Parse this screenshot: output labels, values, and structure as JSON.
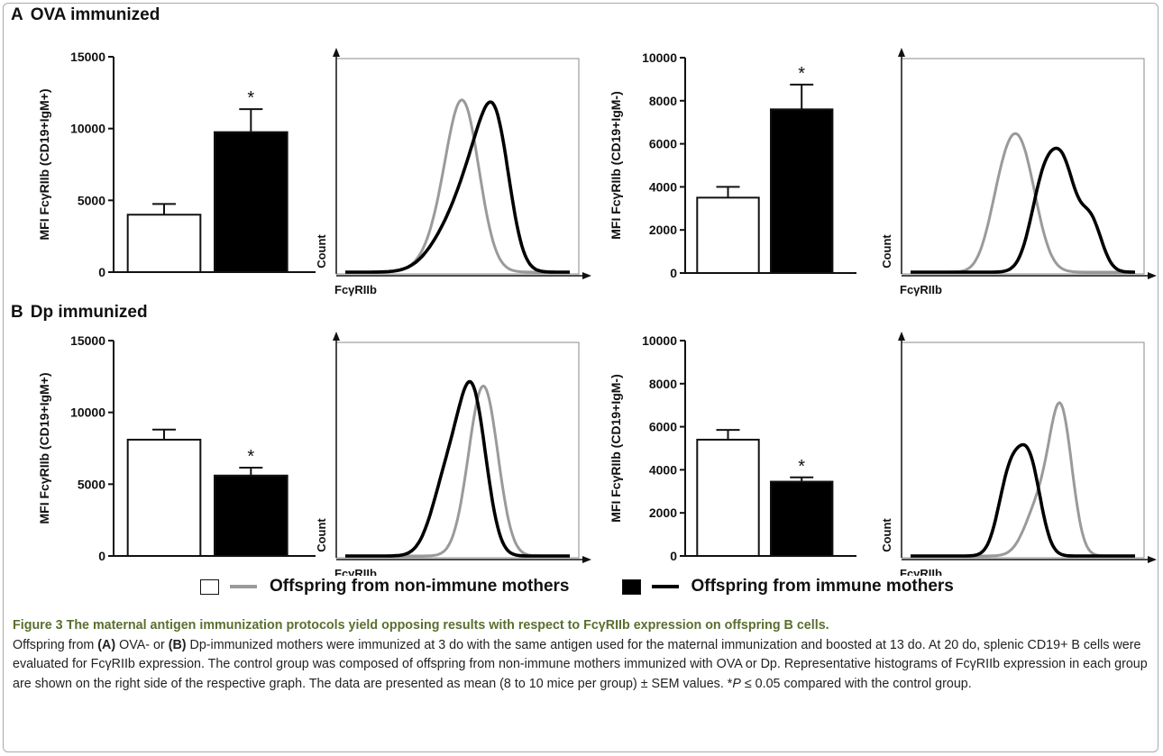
{
  "sections": [
    {
      "letter": "A",
      "title": "OVA immunized"
    },
    {
      "letter": "B",
      "title": "Dp immunized"
    }
  ],
  "colors": {
    "non_immune": "#9a9a9a",
    "immune": "#000000",
    "caption_title": "#5a6f2f"
  },
  "histogram_labels": {
    "y": "Count",
    "x": "FcγRIIb"
  },
  "legend": {
    "non_immune": "Offspring from non-immune mothers",
    "immune": "Offspring from immune mothers"
  },
  "caption": {
    "title": "Figure 3 The maternal antigen immunization protocols yield opposing results with respect to FcγRIIb expression on offspring B cells.",
    "part1": "Offspring from ",
    "ref_a": "(A)",
    "part2": " OVA- or ",
    "ref_b": "(B)",
    "part3": " Dp-immunized mothers were immunized at 3 do with the same antigen used for the maternal immunization and boosted at 13 do. At 20 do, splenic CD19+ B cells were evaluated for FcγRIIb expression. The control group was composed of offspring from non-immune mothers immunized with OVA or Dp. Representative histograms of FcγRIIb expression in each group are shown on the right side of the respective graph. The data are presented as mean (8 to 10 mice per group) ± SEM values. *",
    "p_symbol": "P",
    "part4": " ≤ 0.05 compared with the control group."
  },
  "chart_data": [
    {
      "type": "bar",
      "panel": "A-left",
      "categories": [
        "Offspring from non-immune mothers",
        "Offspring from immune mothers"
      ],
      "values": [
        4000,
        9750
      ],
      "errors": [
        750,
        1600
      ],
      "significance": [
        "",
        "*"
      ],
      "ylabel": "MFI FcγRIIb (CD19+IgM+)",
      "ylim": [
        0,
        15000
      ],
      "yticks": [
        0,
        5000,
        10000,
        15000
      ]
    },
    {
      "type": "histogram",
      "panel": "A-left-hist",
      "xlabel": "FcγRIIb",
      "ylabel": "Count",
      "series": [
        {
          "name": "Offspring from non-immune mothers",
          "peak_x": 0.53,
          "peak_y": 0.82
        },
        {
          "name": "Offspring from immune mothers",
          "peak_x": 0.61,
          "peak_y": 0.81
        }
      ]
    },
    {
      "type": "bar",
      "panel": "A-right",
      "categories": [
        "Offspring from non-immune mothers",
        "Offspring from immune mothers"
      ],
      "values": [
        3500,
        7600
      ],
      "errors": [
        500,
        1150
      ],
      "significance": [
        "",
        "*"
      ],
      "ylabel": "MFI FcγRIIb (CD19+IgM-)",
      "ylim": [
        0,
        10000
      ],
      "yticks": [
        0,
        2000,
        4000,
        6000,
        8000,
        10000
      ]
    },
    {
      "type": "histogram",
      "panel": "A-right-hist",
      "xlabel": "FcγRIIb",
      "ylabel": "Count",
      "series": [
        {
          "name": "Offspring from non-immune mothers",
          "peak_x": 0.49,
          "peak_y": 0.66
        },
        {
          "name": "Offspring from immune mothers",
          "peak_x": 0.6,
          "peak_y": 0.59
        }
      ]
    },
    {
      "type": "bar",
      "panel": "B-left",
      "categories": [
        "Offspring from non-immune mothers",
        "Offspring from immune mothers"
      ],
      "values": [
        8100,
        5600
      ],
      "errors": [
        700,
        550
      ],
      "significance": [
        "",
        "*"
      ],
      "ylabel": "MFI FcγRIIb (CD19+IgM+)",
      "ylim": [
        0,
        15000
      ],
      "yticks": [
        0,
        5000,
        10000,
        15000
      ]
    },
    {
      "type": "histogram",
      "panel": "B-left-hist",
      "xlabel": "FcγRIIb",
      "ylabel": "Count",
      "series": [
        {
          "name": "Offspring from non-immune mothers",
          "peak_x": 0.63,
          "peak_y": 0.81
        },
        {
          "name": "Offspring from immune mothers",
          "peak_x": 0.57,
          "peak_y": 0.83
        }
      ]
    },
    {
      "type": "bar",
      "panel": "B-right",
      "categories": [
        "Offspring from non-immune mothers",
        "Offspring from immune mothers"
      ],
      "values": [
        5400,
        3450
      ],
      "errors": [
        450,
        200
      ],
      "significance": [
        "",
        "*"
      ],
      "ylabel": "MFI FcγRIIb (CD19+IgM-)",
      "ylim": [
        0,
        10000
      ],
      "yticks": [
        0,
        2000,
        4000,
        6000,
        8000,
        10000
      ]
    },
    {
      "type": "histogram",
      "panel": "B-right-hist",
      "xlabel": "FcγRIIb",
      "ylabel": "Count",
      "series": [
        {
          "name": "Offspring from non-immune mothers",
          "peak_x": 0.67,
          "peak_y": 0.73
        },
        {
          "name": "Offspring from immune mothers",
          "peak_x": 0.53,
          "peak_y": 0.53
        }
      ]
    }
  ]
}
